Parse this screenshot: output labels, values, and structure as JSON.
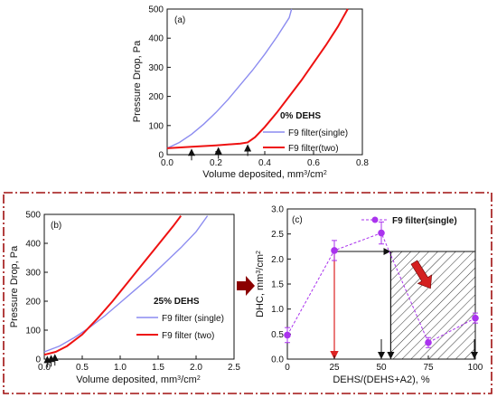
{
  "chart_data": [
    {
      "panel": "(a)",
      "type": "line",
      "xlabel": "Volume deposited, mm³/cm²",
      "ylabel": "Pressure Drop, Pa",
      "xlim": [
        0,
        0.8
      ],
      "ylim": [
        0,
        500
      ],
      "xticks": [
        0.0,
        0.2,
        0.4,
        0.6,
        0.8
      ],
      "yticks": [
        0,
        100,
        200,
        300,
        400,
        500
      ],
      "annotation": "0% DEHS",
      "legend_position": "bottom-right",
      "series": [
        {
          "name": "F9 filter(single)",
          "color": "#8c8cf0",
          "x": [
            0,
            0.05,
            0.1,
            0.15,
            0.2,
            0.25,
            0.3,
            0.35,
            0.4,
            0.45,
            0.5,
            0.51
          ],
          "y": [
            22,
            42,
            70,
            105,
            145,
            190,
            240,
            290,
            345,
            405,
            470,
            500
          ]
        },
        {
          "name": "F9 filter(two)",
          "color": "#ee1111",
          "x": [
            0,
            0.1,
            0.2,
            0.3,
            0.33,
            0.36,
            0.4,
            0.45,
            0.5,
            0.55,
            0.6,
            0.65,
            0.7,
            0.74
          ],
          "y": [
            22,
            27,
            32,
            38,
            42,
            60,
            95,
            145,
            200,
            255,
            315,
            375,
            440,
            500
          ]
        }
      ],
      "arrows_at_x": [
        0.1,
        0.21,
        0.33
      ]
    },
    {
      "panel": "(b)",
      "type": "line",
      "xlabel": "Volume deposited, mm³/cm²",
      "ylabel": "Pressure Drop, Pa",
      "xlim": [
        0,
        2.5
      ],
      "ylim": [
        0,
        500
      ],
      "xticks": [
        0.0,
        0.5,
        1.0,
        1.5,
        2.0,
        2.5
      ],
      "yticks": [
        0,
        100,
        200,
        300,
        400,
        500
      ],
      "annotation": "25% DEHS",
      "legend_position": "bottom-right",
      "series": [
        {
          "name": "F9 filter (single)",
          "color": "#8c8cf0",
          "x": [
            0,
            0.2,
            0.4,
            0.6,
            0.8,
            1.0,
            1.2,
            1.4,
            1.6,
            1.8,
            2.0,
            2.15
          ],
          "y": [
            25,
            45,
            75,
            110,
            150,
            195,
            240,
            285,
            335,
            385,
            440,
            495
          ]
        },
        {
          "name": "F9 filter (two)",
          "color": "#ee1111",
          "x": [
            0,
            0.15,
            0.3,
            0.5,
            0.7,
            0.9,
            1.1,
            1.3,
            1.5,
            1.7,
            1.8
          ],
          "y": [
            15,
            25,
            45,
            85,
            140,
            200,
            265,
            330,
            395,
            460,
            495
          ]
        }
      ],
      "arrows_at_x": [
        0.04,
        0.09,
        0.14
      ]
    },
    {
      "panel": "(c)",
      "type": "scatter",
      "xlabel": "DEHS/(DEHS+A2), %",
      "ylabel": "DHC, mm³/cm²",
      "xlim": [
        0,
        100
      ],
      "ylim": [
        0,
        3
      ],
      "xticks": [
        0,
        25,
        50,
        75,
        100
      ],
      "yticks": [
        0.0,
        0.5,
        1.0,
        1.5,
        2.0,
        2.5,
        3.0
      ],
      "legend_position": "top-right",
      "series": [
        {
          "name": "F9 filter(single)",
          "color": "#aa33ee",
          "x": [
            0,
            25,
            50,
            75,
            100
          ],
          "y": [
            0.48,
            2.17,
            2.52,
            0.33,
            0.82
          ],
          "err": [
            0.15,
            0.2,
            0.22,
            0.1,
            0.1
          ]
        }
      ],
      "hatched_region_x": [
        55,
        100
      ],
      "hatched_region_ylim": [
        0,
        2.15
      ]
    }
  ]
}
